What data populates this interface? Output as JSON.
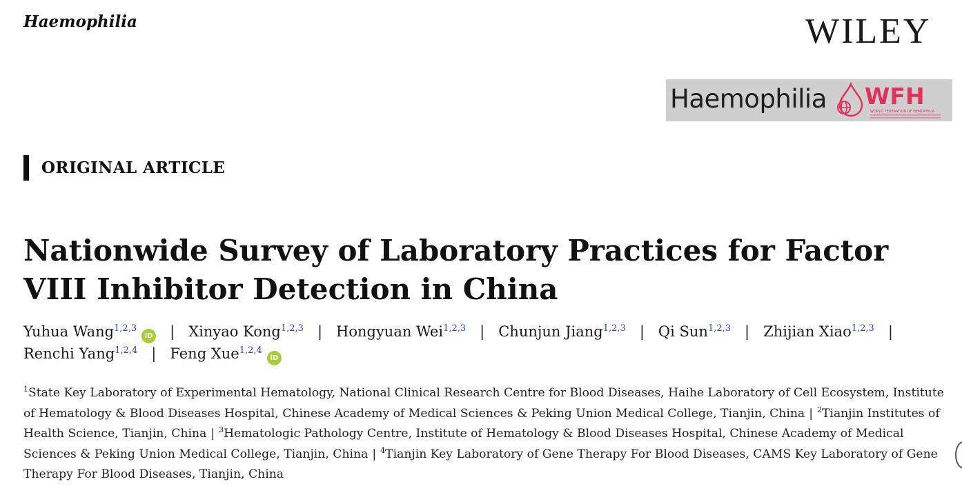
{
  "header": {
    "journal": "Haemophilia",
    "publisher": "WILEY",
    "banner": {
      "journal": "Haemophilia",
      "society_abbrev": "WFH",
      "society_full": "WORLD FEDERATION OF HEMOPHILIA",
      "accent": "#e0325a"
    }
  },
  "article_type": "ORIGINAL ARTICLE",
  "title": "Nationwide Survey of Laboratory Practices for Factor VIII Inhibitor Detection in China",
  "authors": [
    {
      "name": "Yuhua Wang",
      "aff": "1,2,3",
      "orcid": true
    },
    {
      "name": "Xinyao Kong",
      "aff": "1,2,3",
      "orcid": false
    },
    {
      "name": "Hongyuan Wei",
      "aff": "1,2,3",
      "orcid": false
    },
    {
      "name": "Chunjun Jiang",
      "aff": "1,2,3",
      "orcid": false
    },
    {
      "name": "Qi Sun",
      "aff": "1,2,3",
      "orcid": false
    },
    {
      "name": "Zhijian Xiao",
      "aff": "1,2,3",
      "orcid": false
    },
    {
      "name": "Renchi Yang",
      "aff": "1,2,4",
      "orcid": false
    },
    {
      "name": "Feng Xue",
      "aff": "1,2,4",
      "orcid": true
    }
  ],
  "orcid_label": "iD",
  "affiliations": [
    {
      "num": "1",
      "text": "State Key Laboratory of Experimental Hematology, National Clinical Research Centre for Blood Diseases, Haihe Laboratory of Cell Ecosystem, Institute of Hematology & Blood Diseases Hospital, Chinese Academy of Medical Sciences & Peking Union Medical College, Tianjin, China"
    },
    {
      "num": "2",
      "text": "Tianjin Institutes of Health Science, Tianjin, China"
    },
    {
      "num": "3",
      "text": "Hematologic Pathology Centre, Institute of Hematology & Blood Diseases Hospital, Chinese Academy of Medical Sciences & Peking Union Medical College, Tianjin, China"
    },
    {
      "num": "4",
      "text": "Tianjin Key Laboratory of Gene Therapy For Blood Diseases, CAMS Key Laboratory of Gene Therapy For Blood Diseases, Tianjin, China"
    }
  ]
}
